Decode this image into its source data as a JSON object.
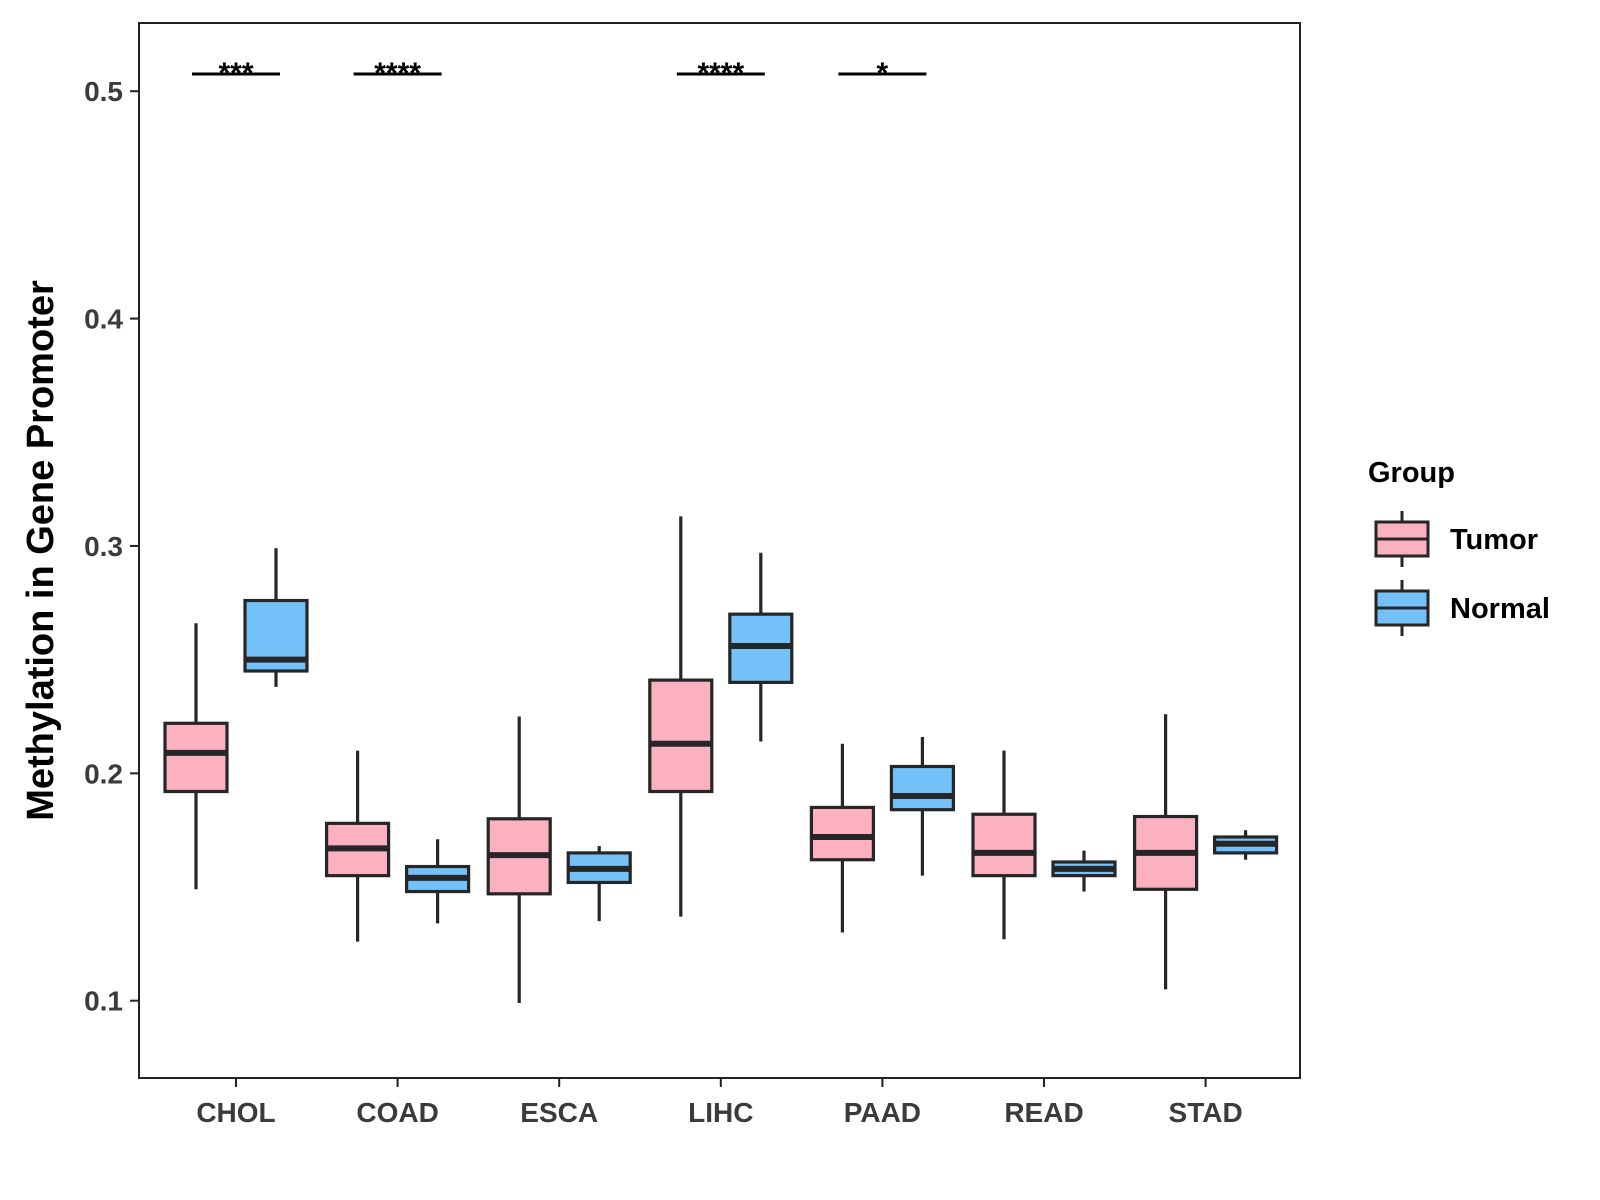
{
  "chart_data": {
    "type": "boxplot",
    "title": "",
    "xlabel": "",
    "ylabel": "Methylation in Gene Promoter",
    "ylim": [
      0.066,
      0.53
    ],
    "yticks": [
      0.1,
      0.2,
      0.3,
      0.4,
      0.5
    ],
    "ytick_labels": [
      "0.1",
      "0.2",
      "0.3",
      "0.4",
      "0.5"
    ],
    "categories": [
      "CHOL",
      "COAD",
      "ESCA",
      "LIHC",
      "PAAD",
      "READ",
      "STAD"
    ],
    "legend": {
      "title": "Group",
      "position": "right",
      "entries": [
        "Tumor",
        "Normal"
      ]
    },
    "colors": {
      "Tumor": "#FBB1C0",
      "Normal": "#74C0F8",
      "outline": "#262626",
      "axis": "#222222"
    },
    "series": [
      {
        "name": "Tumor",
        "boxes": [
          {
            "category": "CHOL",
            "min": 0.149,
            "q1": 0.192,
            "median": 0.209,
            "q3": 0.222,
            "max": 0.266
          },
          {
            "category": "COAD",
            "min": 0.126,
            "q1": 0.155,
            "median": 0.167,
            "q3": 0.178,
            "max": 0.21
          },
          {
            "category": "ESCA",
            "min": 0.099,
            "q1": 0.147,
            "median": 0.164,
            "q3": 0.18,
            "max": 0.225
          },
          {
            "category": "LIHC",
            "min": 0.137,
            "q1": 0.192,
            "median": 0.213,
            "q3": 0.241,
            "max": 0.313
          },
          {
            "category": "PAAD",
            "min": 0.13,
            "q1": 0.162,
            "median": 0.172,
            "q3": 0.185,
            "max": 0.213
          },
          {
            "category": "READ",
            "min": 0.127,
            "q1": 0.155,
            "median": 0.165,
            "q3": 0.182,
            "max": 0.21
          },
          {
            "category": "STAD",
            "min": 0.105,
            "q1": 0.149,
            "median": 0.165,
            "q3": 0.181,
            "max": 0.226
          }
        ]
      },
      {
        "name": "Normal",
        "boxes": [
          {
            "category": "CHOL",
            "min": 0.238,
            "q1": 0.245,
            "median": 0.25,
            "q3": 0.276,
            "max": 0.299
          },
          {
            "category": "COAD",
            "min": 0.134,
            "q1": 0.148,
            "median": 0.154,
            "q3": 0.159,
            "max": 0.171
          },
          {
            "category": "ESCA",
            "min": 0.135,
            "q1": 0.152,
            "median": 0.158,
            "q3": 0.165,
            "max": 0.168
          },
          {
            "category": "LIHC",
            "min": 0.214,
            "q1": 0.24,
            "median": 0.256,
            "q3": 0.27,
            "max": 0.297
          },
          {
            "category": "PAAD",
            "min": 0.155,
            "q1": 0.184,
            "median": 0.19,
            "q3": 0.203,
            "max": 0.216
          },
          {
            "category": "READ",
            "min": 0.148,
            "q1": 0.155,
            "median": 0.158,
            "q3": 0.161,
            "max": 0.166
          },
          {
            "category": "STAD",
            "min": 0.162,
            "q1": 0.165,
            "median": 0.169,
            "q3": 0.172,
            "max": 0.175
          }
        ]
      }
    ],
    "significance": [
      {
        "category": "CHOL",
        "label": "***"
      },
      {
        "category": "COAD",
        "label": "****"
      },
      {
        "category": "LIHC",
        "label": "****"
      },
      {
        "category": "PAAD",
        "label": "*"
      }
    ]
  }
}
